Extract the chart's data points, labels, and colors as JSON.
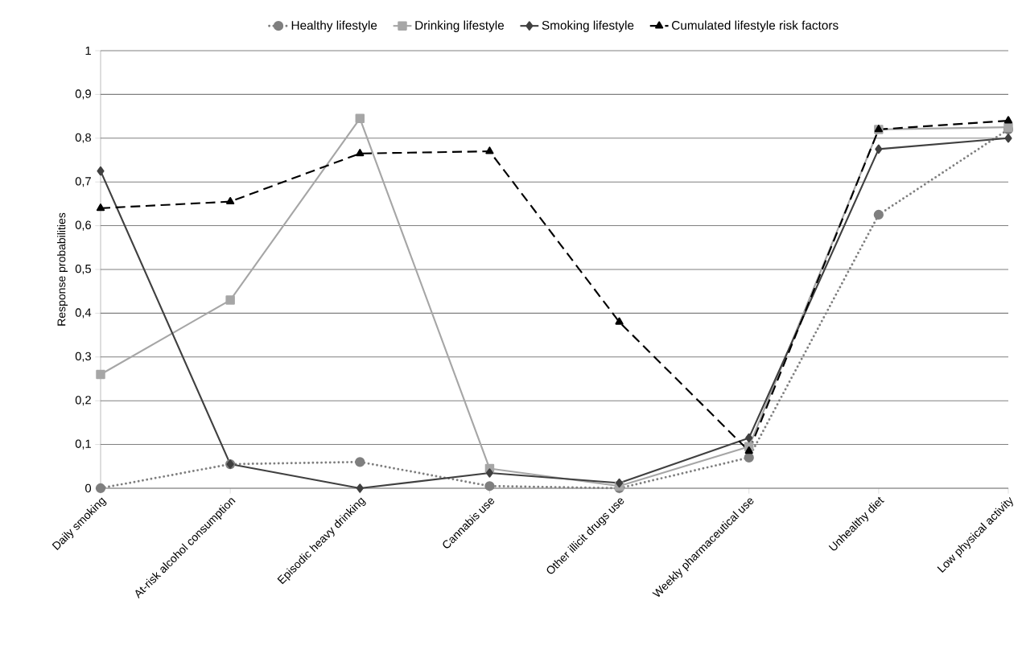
{
  "chart_data": {
    "type": "line",
    "ylabel": "Response probabilities",
    "categories": [
      "Daily smoking",
      "At-risk alcohol consumption",
      "Episodic heavy drinking",
      "Cannabis use",
      "Other illicit drugs use",
      "Weekly pharmaceutical use",
      "Unhealthy diet",
      "Low physical activity"
    ],
    "series": [
      {
        "name": "Healthy lifestyle",
        "color": "#7f7f7f",
        "marker": "circle",
        "line_style": "dotted",
        "values": [
          0,
          0.055,
          0.06,
          0.005,
          0,
          0.07,
          0.625,
          0.82
        ]
      },
      {
        "name": "Drinking lifestyle",
        "color": "#a6a6a6",
        "marker": "square",
        "line_style": "solid",
        "values": [
          0.26,
          0.43,
          0.845,
          0.045,
          0.005,
          0.095,
          0.82,
          0.825
        ]
      },
      {
        "name": "Smoking lifestyle",
        "color": "#404040",
        "marker": "diamond",
        "line_style": "solid",
        "values": [
          0.725,
          0.055,
          0,
          0.035,
          0.012,
          0.115,
          0.775,
          0.8
        ]
      },
      {
        "name": "Cumulated lifestyle risk factors",
        "color": "#000000",
        "marker": "triangle",
        "line_style": "dashed",
        "values": [
          0.64,
          0.655,
          0.765,
          0.77,
          0.38,
          0.085,
          0.82,
          0.84
        ]
      }
    ],
    "ylim": [
      0,
      1
    ],
    "yticks": [
      0,
      {
        "value": 0.1,
        "label": "0,1"
      },
      {
        "value": 0.2,
        "label": "0,2"
      },
      {
        "value": 0.3,
        "label": "0,3"
      },
      {
        "value": 0.4,
        "label": "0,4"
      },
      {
        "value": 0.5,
        "label": "0,5"
      },
      {
        "value": 0.6,
        "label": "0,6"
      },
      {
        "value": 0.7,
        "label": "0,7"
      },
      {
        "value": 0.8,
        "label": "0,8"
      },
      {
        "value": 0.9,
        "label": "0,9"
      },
      1
    ],
    "grid": "y",
    "legend": "top"
  }
}
